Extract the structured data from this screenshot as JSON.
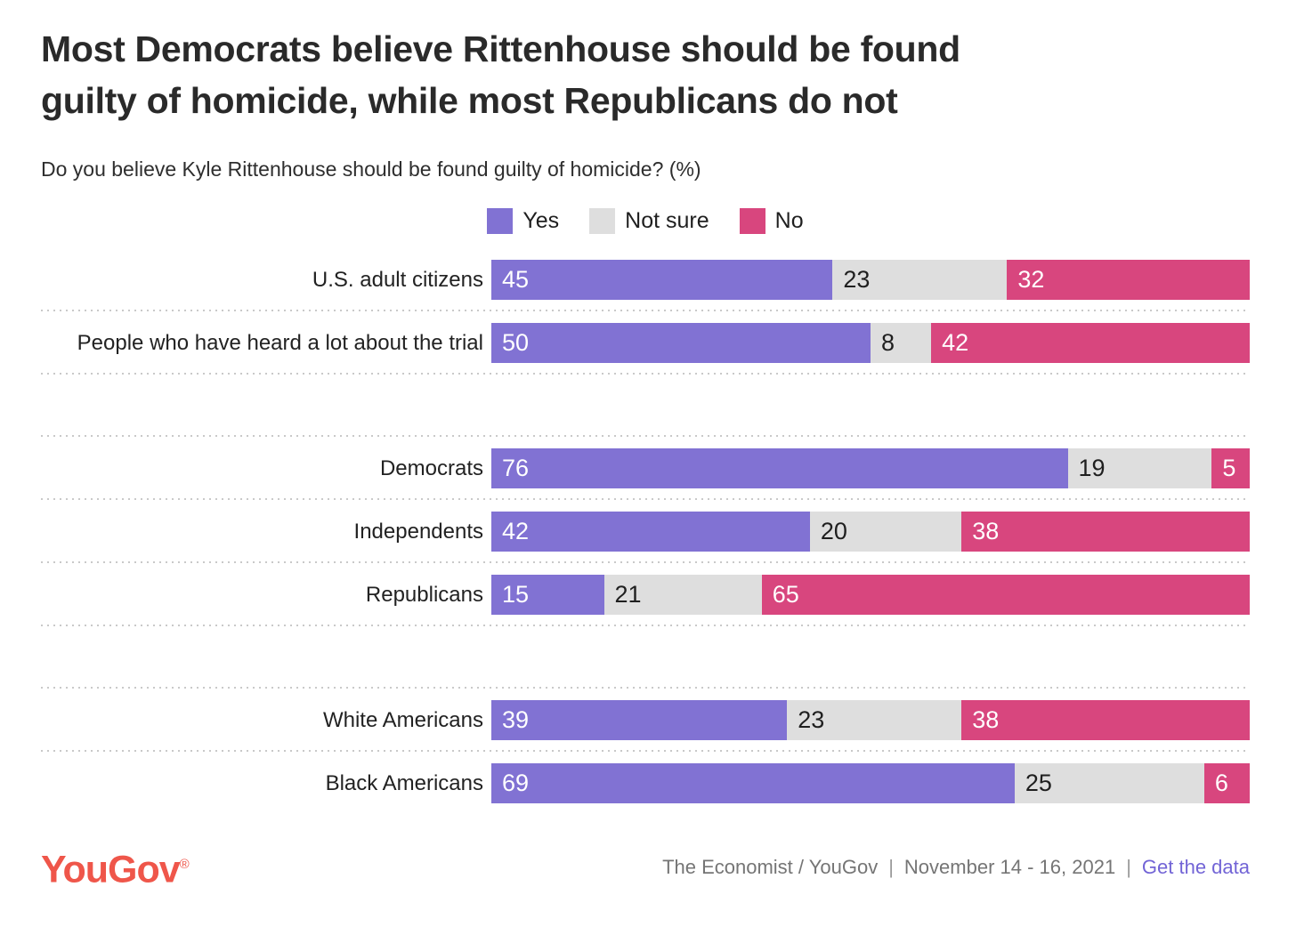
{
  "header": {
    "title": "Most Democrats believe Rittenhouse should be found guilty of homicide, while most Republicans do not",
    "title_line1": "Most Democrats believe Rittenhouse should be found",
    "title_line2": "guilty of homicide, while most Republicans do not",
    "subtitle": "Do you believe Kyle Rittenhouse should be found guilty of homicide? (%)"
  },
  "chart_data": {
    "type": "bar",
    "variant": "horizontal-stacked",
    "title": "Most Democrats believe Rittenhouse should be found guilty of homicide, while most Republicans do not",
    "question": "Do you believe Kyle Rittenhouse should be found guilty of homicide? (%)",
    "unit": "%",
    "xlim": [
      0,
      100
    ],
    "legend_position": "top-center",
    "value_labels": "inside-start",
    "categories": [
      "U.S. adult citizens",
      "People who have heard a lot about the trial",
      "Democrats",
      "Independents",
      "Republicans",
      "White Americans",
      "Black Americans"
    ],
    "groups": [
      [
        0,
        1
      ],
      [
        2,
        3,
        4
      ],
      [
        5,
        6
      ]
    ],
    "series": [
      {
        "name": "Yes",
        "color": "#8172d3",
        "label_color": "#ffffff",
        "values": [
          45,
          50,
          76,
          42,
          15,
          39,
          69
        ]
      },
      {
        "name": "Not sure",
        "color": "#dedede",
        "label_color": "#1f1f1f",
        "values": [
          23,
          8,
          19,
          20,
          21,
          23,
          25
        ]
      },
      {
        "name": "No",
        "color": "#d8467e",
        "label_color": "#ffffff",
        "values": [
          32,
          42,
          5,
          38,
          65,
          38,
          6
        ]
      }
    ]
  },
  "footer": {
    "logo_text": "YouGov",
    "registered_mark": "®",
    "source": "The Economist / YouGov",
    "separator": "|",
    "dates": "November 14 - 16, 2021",
    "link_label": "Get the data"
  },
  "colors": {
    "yes": "#8172d3",
    "not_sure": "#dedede",
    "no": "#d8467e",
    "logo": "#ef564a",
    "link": "#7264d6",
    "title_text": "#2a2a2a",
    "separator_dots": "#c9c9c9"
  }
}
